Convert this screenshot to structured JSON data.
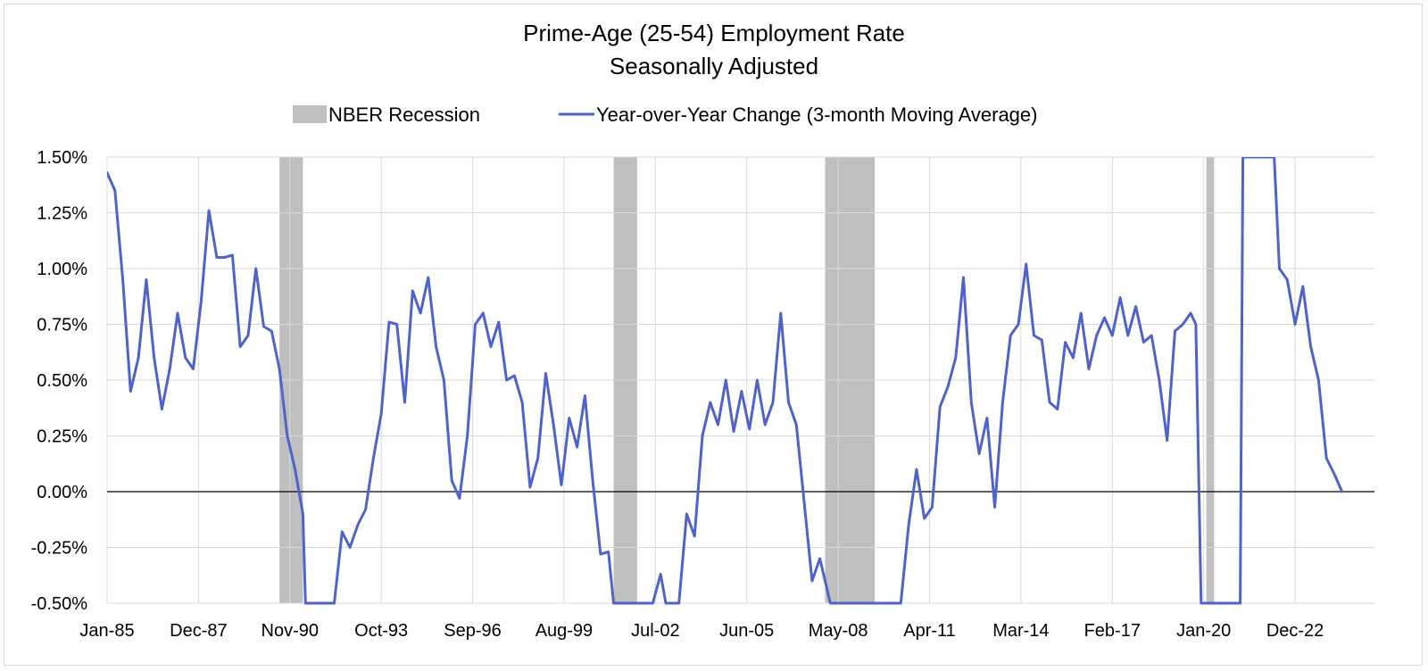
{
  "chart_data": {
    "type": "line",
    "title": "Prime-Age (25-54) Employment Rate",
    "subtitle": "Seasonally Adjusted",
    "xlabel": "",
    "ylabel": "",
    "ylim": [
      -0.5,
      1.5
    ],
    "y_ticks": [
      "1.50%",
      "1.25%",
      "1.00%",
      "0.75%",
      "0.50%",
      "0.25%",
      "0.00%",
      "-0.25%",
      "-0.50%"
    ],
    "x_ticks": [
      "Jan-85",
      "Dec-87",
      "Nov-90",
      "Oct-93",
      "Sep-96",
      "Aug-99",
      "Jul-02",
      "Jun-05",
      "May-08",
      "Apr-11",
      "Mar-14",
      "Feb-17",
      "Jan-20",
      "Dec-22"
    ],
    "grid": true,
    "legend_position": "top",
    "legend": {
      "recession_label": "NBER Recession",
      "series_label": "Year-over-Year Change (3-month Moving Average)"
    },
    "colors": {
      "series": "#4F63C9",
      "recession": "#BFBFBF",
      "grid": "#D9D9D9",
      "axis": "#000000"
    },
    "recessions": [
      {
        "start": "1990-07",
        "end": "1991-03"
      },
      {
        "start": "2001-03",
        "end": "2001-11"
      },
      {
        "start": "2007-12",
        "end": "2009-06"
      },
      {
        "start": "2020-02",
        "end": "2020-04"
      }
    ],
    "series": [
      {
        "name": "Year-over-Year Change (3-month Moving Average)",
        "points": [
          [
            "1985-01",
            1.43
          ],
          [
            "1985-04",
            1.35
          ],
          [
            "1985-07",
            0.95
          ],
          [
            "1985-10",
            0.45
          ],
          [
            "1986-01",
            0.6
          ],
          [
            "1986-04",
            0.95
          ],
          [
            "1986-07",
            0.6
          ],
          [
            "1986-10",
            0.37
          ],
          [
            "1987-01",
            0.55
          ],
          [
            "1987-04",
            0.8
          ],
          [
            "1987-07",
            0.6
          ],
          [
            "1987-10",
            0.55
          ],
          [
            "1988-01",
            0.85
          ],
          [
            "1988-04",
            1.26
          ],
          [
            "1988-07",
            1.05
          ],
          [
            "1988-10",
            1.05
          ],
          [
            "1989-01",
            1.06
          ],
          [
            "1989-04",
            0.65
          ],
          [
            "1989-07",
            0.7
          ],
          [
            "1989-10",
            1.0
          ],
          [
            "1990-01",
            0.74
          ],
          [
            "1990-04",
            0.72
          ],
          [
            "1990-07",
            0.55
          ],
          [
            "1990-10",
            0.25
          ],
          [
            "1991-01",
            0.1
          ],
          [
            "1991-04",
            -0.1
          ],
          [
            "1991-05",
            -0.5
          ],
          [
            "1992-04",
            -0.5
          ],
          [
            "1992-07",
            -0.18
          ],
          [
            "1992-10",
            -0.25
          ],
          [
            "1993-01",
            -0.15
          ],
          [
            "1993-04",
            -0.08
          ],
          [
            "1993-07",
            0.15
          ],
          [
            "1993-10",
            0.35
          ],
          [
            "1994-01",
            0.76
          ],
          [
            "1994-04",
            0.75
          ],
          [
            "1994-07",
            0.4
          ],
          [
            "1994-10",
            0.9
          ],
          [
            "1995-01",
            0.8
          ],
          [
            "1995-04",
            0.96
          ],
          [
            "1995-07",
            0.65
          ],
          [
            "1995-10",
            0.5
          ],
          [
            "1996-01",
            0.05
          ],
          [
            "1996-04",
            -0.03
          ],
          [
            "1996-07",
            0.25
          ],
          [
            "1996-10",
            0.75
          ],
          [
            "1997-01",
            0.8
          ],
          [
            "1997-04",
            0.65
          ],
          [
            "1997-07",
            0.76
          ],
          [
            "1997-10",
            0.5
          ],
          [
            "1998-01",
            0.52
          ],
          [
            "1998-04",
            0.4
          ],
          [
            "1998-07",
            0.02
          ],
          [
            "1998-10",
            0.15
          ],
          [
            "1999-01",
            0.53
          ],
          [
            "1999-04",
            0.3
          ],
          [
            "1999-07",
            0.03
          ],
          [
            "1999-10",
            0.33
          ],
          [
            "2000-01",
            0.2
          ],
          [
            "2000-04",
            0.43
          ],
          [
            "2000-07",
            0.05
          ],
          [
            "2000-10",
            -0.28
          ],
          [
            "2001-01",
            -0.27
          ],
          [
            "2001-03",
            -0.5
          ],
          [
            "2002-06",
            -0.5
          ],
          [
            "2002-09",
            -0.37
          ],
          [
            "2002-11",
            -0.5
          ],
          [
            "2003-04",
            -0.5
          ],
          [
            "2003-07",
            -0.1
          ],
          [
            "2003-10",
            -0.2
          ],
          [
            "2004-01",
            0.25
          ],
          [
            "2004-04",
            0.4
          ],
          [
            "2004-07",
            0.3
          ],
          [
            "2004-10",
            0.5
          ],
          [
            "2005-01",
            0.27
          ],
          [
            "2005-04",
            0.45
          ],
          [
            "2005-07",
            0.28
          ],
          [
            "2005-10",
            0.5
          ],
          [
            "2006-01",
            0.3
          ],
          [
            "2006-04",
            0.4
          ],
          [
            "2006-07",
            0.8
          ],
          [
            "2006-10",
            0.4
          ],
          [
            "2007-01",
            0.3
          ],
          [
            "2007-04",
            -0.05
          ],
          [
            "2007-07",
            -0.4
          ],
          [
            "2007-10",
            -0.3
          ],
          [
            "2008-01",
            -0.45
          ],
          [
            "2008-02",
            -0.5
          ],
          [
            "2010-05",
            -0.5
          ],
          [
            "2010-08",
            -0.15
          ],
          [
            "2010-11",
            0.1
          ],
          [
            "2011-02",
            -0.12
          ],
          [
            "2011-05",
            -0.07
          ],
          [
            "2011-08",
            0.38
          ],
          [
            "2011-11",
            0.47
          ],
          [
            "2012-02",
            0.6
          ],
          [
            "2012-05",
            0.96
          ],
          [
            "2012-08",
            0.4
          ],
          [
            "2012-11",
            0.17
          ],
          [
            "2013-02",
            0.33
          ],
          [
            "2013-05",
            -0.07
          ],
          [
            "2013-08",
            0.4
          ],
          [
            "2013-11",
            0.7
          ],
          [
            "2014-02",
            0.75
          ],
          [
            "2014-05",
            1.02
          ],
          [
            "2014-08",
            0.7
          ],
          [
            "2014-11",
            0.68
          ],
          [
            "2015-02",
            0.4
          ],
          [
            "2015-05",
            0.37
          ],
          [
            "2015-08",
            0.67
          ],
          [
            "2015-11",
            0.6
          ],
          [
            "2016-02",
            0.8
          ],
          [
            "2016-05",
            0.55
          ],
          [
            "2016-08",
            0.7
          ],
          [
            "2016-11",
            0.78
          ],
          [
            "2017-02",
            0.7
          ],
          [
            "2017-05",
            0.87
          ],
          [
            "2017-08",
            0.7
          ],
          [
            "2017-11",
            0.83
          ],
          [
            "2018-02",
            0.67
          ],
          [
            "2018-05",
            0.7
          ],
          [
            "2018-08",
            0.5
          ],
          [
            "2018-11",
            0.23
          ],
          [
            "2019-02",
            0.72
          ],
          [
            "2019-05",
            0.75
          ],
          [
            "2019-08",
            0.8
          ],
          [
            "2019-10",
            0.75
          ],
          [
            "2019-12",
            -0.5
          ],
          [
            "2021-03",
            -0.5
          ],
          [
            "2021-04",
            1.5
          ],
          [
            "2022-04",
            1.5
          ],
          [
            "2022-06",
            1.0
          ],
          [
            "2022-09",
            0.95
          ],
          [
            "2022-12",
            0.75
          ],
          [
            "2023-03",
            0.92
          ],
          [
            "2023-06",
            0.65
          ],
          [
            "2023-09",
            0.5
          ],
          [
            "2023-12",
            0.15
          ],
          [
            "2024-03",
            0.08
          ],
          [
            "2024-06",
            0.0
          ]
        ]
      }
    ]
  }
}
